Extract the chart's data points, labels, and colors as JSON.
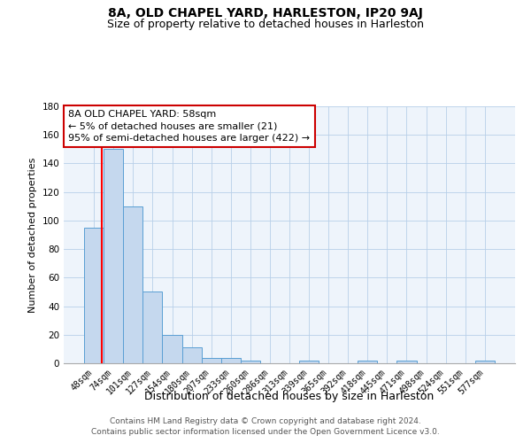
{
  "title": "8A, OLD CHAPEL YARD, HARLESTON, IP20 9AJ",
  "subtitle": "Size of property relative to detached houses in Harleston",
  "xlabel": "Distribution of detached houses by size in Harleston",
  "ylabel": "Number of detached properties",
  "categories": [
    "48sqm",
    "74sqm",
    "101sqm",
    "127sqm",
    "154sqm",
    "180sqm",
    "207sqm",
    "233sqm",
    "260sqm",
    "286sqm",
    "313sqm",
    "339sqm",
    "365sqm",
    "392sqm",
    "418sqm",
    "445sqm",
    "471sqm",
    "498sqm",
    "524sqm",
    "551sqm",
    "577sqm"
  ],
  "values": [
    95,
    150,
    110,
    50,
    20,
    11,
    4,
    4,
    2,
    0,
    0,
    2,
    0,
    0,
    2,
    0,
    2,
    0,
    0,
    0,
    2
  ],
  "bar_color": "#c5d8ee",
  "bar_edge_color": "#5a9fd4",
  "bar_edge_width": 0.7,
  "ylim": [
    0,
    180
  ],
  "yticks": [
    0,
    20,
    40,
    60,
    80,
    100,
    120,
    140,
    160,
    180
  ],
  "annotation_text": "8A OLD CHAPEL YARD: 58sqm\n← 5% of detached houses are smaller (21)\n95% of semi-detached houses are larger (422) →",
  "annotation_box_color": "#ffffff",
  "annotation_box_edge_color": "#cc0000",
  "footer_line1": "Contains HM Land Registry data © Crown copyright and database right 2024.",
  "footer_line2": "Contains public sector information licensed under the Open Government Licence v3.0.",
  "background_color": "#ffffff",
  "plot_bg_color": "#eef4fb",
  "grid_color": "#b8cfe8",
  "title_fontsize": 10,
  "subtitle_fontsize": 9,
  "tick_fontsize": 7,
  "ylabel_fontsize": 8,
  "xlabel_fontsize": 9,
  "annotation_fontsize": 8,
  "footer_fontsize": 6.5
}
